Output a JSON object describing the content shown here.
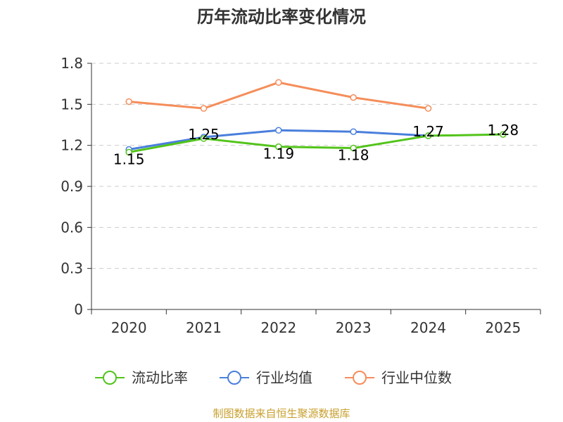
{
  "chart_data": {
    "type": "line",
    "title": "历年流动比率变化情况",
    "categories": [
      "2020",
      "2021",
      "2022",
      "2023",
      "2024",
      "2025"
    ],
    "ylim": [
      0,
      1.8
    ],
    "yticks": [
      "0",
      "0.3",
      "0.6",
      "0.9",
      "1.2",
      "1.5",
      "1.8"
    ],
    "ytick_values": [
      0,
      0.3,
      0.6,
      0.9,
      1.2,
      1.5,
      1.8
    ],
    "grid": true,
    "series": [
      {
        "name": "流动比率",
        "color": "#52c41a",
        "values": [
          1.15,
          1.25,
          1.19,
          1.18,
          1.27,
          1.28
        ],
        "labels": [
          "1.15",
          "1.25",
          "1.19",
          "1.18",
          "1.27",
          "1.28"
        ]
      },
      {
        "name": "行业均值",
        "color": "#4a7fdc",
        "values": [
          1.17,
          1.26,
          1.31,
          1.3,
          1.27,
          null
        ]
      },
      {
        "name": "行业中位数",
        "color": "#f58d5a",
        "values": [
          1.52,
          1.47,
          1.66,
          1.55,
          1.47,
          null
        ]
      }
    ],
    "legend_position": "bottom"
  },
  "footer": {
    "source": "制图数据来自恒生聚源数据库",
    "source_color": "#c8a02e"
  }
}
